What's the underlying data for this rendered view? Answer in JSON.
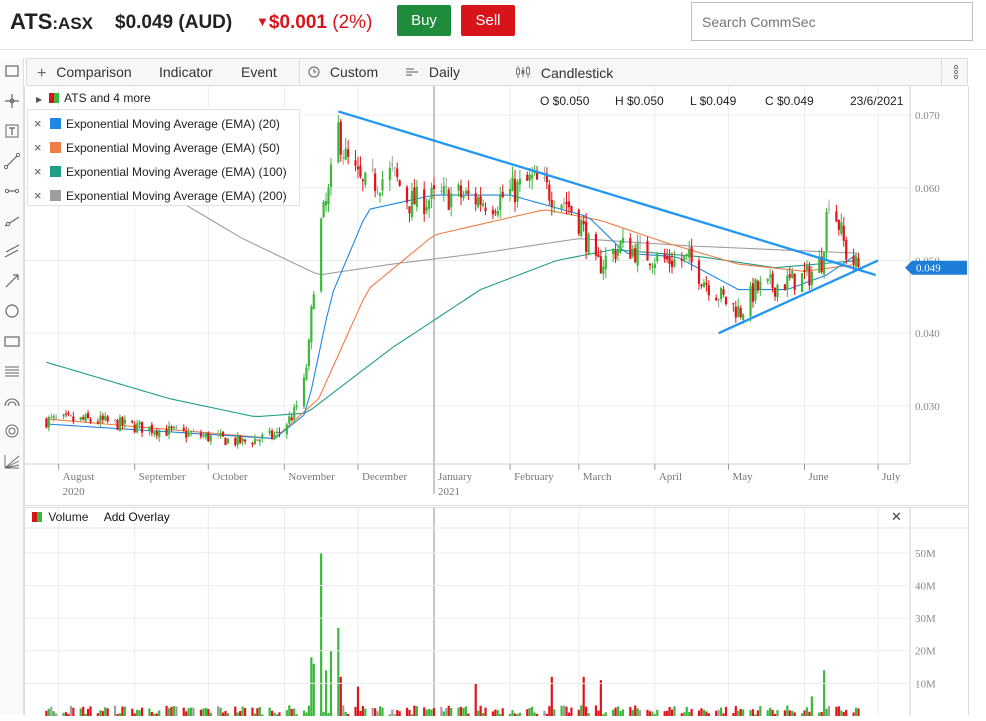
{
  "header": {
    "ticker": "ATS",
    "exchange": ":ASX",
    "price": "$0.049 (AUD)",
    "change_arrow": "▼",
    "change_amount": "$0.001",
    "change_pct": "(2%)",
    "buy_label": "Buy",
    "sell_label": "Sell",
    "search_placeholder": "Search CommSec",
    "colors": {
      "buy": "#1e8c3a",
      "sell": "#d7141a",
      "down": "#d7141a"
    }
  },
  "toolbar": {
    "items": [
      {
        "icon": "plus-icon",
        "label": "Comparison"
      },
      {
        "icon": "",
        "label": "Indicator"
      },
      {
        "icon": "",
        "label": "Event"
      },
      {
        "icon": "clock-icon",
        "label": "Custom"
      },
      {
        "icon": "bars-icon",
        "label": "Daily"
      },
      {
        "icon": "candlestick-icon",
        "label": "Candlestick"
      }
    ],
    "more_icon": "kebab-menu-icon"
  },
  "left_tools": [
    "panel-toggle-icon",
    "crosshair-icon",
    "text-tool-icon",
    "line-tool-icon",
    "horizontal-line-icon",
    "ray-tool-icon",
    "channel-tool-icon",
    "arrow-tool-icon",
    "circle-tool-icon",
    "rectangle-tool-icon",
    "fibonacci-icon",
    "arc-tool-icon",
    "spiral-tool-icon",
    "gann-fan-icon"
  ],
  "chart": {
    "series_label": "ATS and 4 more",
    "ohlc": {
      "open": "O $0.050",
      "high": "H $0.050",
      "low": "L $0.049",
      "close": "C $0.049",
      "date": "23/6/2021"
    },
    "legend": [
      {
        "label": "Exponential Moving Average (EMA) (20)",
        "color": "#1e88e5"
      },
      {
        "label": "Exponential Moving Average (EMA) (50)",
        "color": "#ef7d46"
      },
      {
        "label": "Exponential Moving Average (EMA) (100)",
        "color": "#1e9e84"
      },
      {
        "label": "Exponential Moving Average (EMA) (200)",
        "color": "#9e9e9e"
      }
    ],
    "price_tag": "0.049",
    "colors": {
      "up": "#3cb83c",
      "down": "#e0141a",
      "neutral": "#a0a0a0",
      "trendline": "#2196f3",
      "tag": "#1e7dd6"
    }
  },
  "volume": {
    "label": "Volume",
    "add_overlay": "Add Overlay",
    "close_icon": "close-icon"
  },
  "chart_data": {
    "type": "candlestick",
    "y_axis": {
      "ticks": [
        "0.070",
        "0.060",
        "0.050",
        "0.040",
        "0.030"
      ],
      "ylim": [
        0.022,
        0.074
      ]
    },
    "x_axis": {
      "month_labels": [
        "August",
        "September",
        "October",
        "November",
        "December",
        "January",
        "February",
        "March",
        "April",
        "May",
        "June",
        "July"
      ],
      "year_labels": [
        "2020",
        "2021"
      ]
    },
    "x_range": [
      "2020-07-24",
      "2021-07-14"
    ],
    "price_path": [
      [
        "2020-07-27",
        0.028
      ],
      [
        "2020-08-15",
        0.028
      ],
      [
        "2020-09-15",
        0.0265
      ],
      [
        "2020-10-15",
        0.025
      ],
      [
        "2020-10-29",
        0.026
      ],
      [
        "2020-11-05",
        0.029
      ],
      [
        "2020-11-09",
        0.033
      ],
      [
        "2020-11-11",
        0.038
      ],
      [
        "2020-11-13",
        0.047
      ],
      [
        "2020-11-16",
        0.055
      ],
      [
        "2020-11-19",
        0.059
      ],
      [
        "2020-11-23",
        0.068
      ],
      [
        "2020-11-26",
        0.064
      ],
      [
        "2020-12-03",
        0.06
      ],
      [
        "2020-12-15",
        0.062
      ],
      [
        "2020-12-22",
        0.058
      ],
      [
        "2021-01-10",
        0.059
      ],
      [
        "2021-01-25",
        0.058
      ],
      [
        "2021-02-10",
        0.061
      ],
      [
        "2021-02-24",
        0.058
      ],
      [
        "2021-03-02",
        0.055
      ],
      [
        "2021-03-08",
        0.049
      ],
      [
        "2021-03-18",
        0.052
      ],
      [
        "2021-04-05",
        0.05
      ],
      [
        "2021-04-15",
        0.05
      ],
      [
        "2021-04-22",
        0.047
      ],
      [
        "2021-05-01",
        0.044
      ],
      [
        "2021-05-06",
        0.043
      ],
      [
        "2021-05-12",
        0.046
      ],
      [
        "2021-05-25",
        0.047
      ],
      [
        "2021-06-03",
        0.048
      ],
      [
        "2021-06-08",
        0.05
      ],
      [
        "2021-06-11",
        0.059
      ],
      [
        "2021-06-15",
        0.055
      ],
      [
        "2021-06-18",
        0.051
      ],
      [
        "2021-06-23",
        0.049
      ]
    ],
    "ema_20": [
      [
        "2020-07-27",
        0.0275
      ],
      [
        "2020-10-28",
        0.0255
      ],
      [
        "2020-11-10",
        0.029
      ],
      [
        "2020-11-20",
        0.045
      ],
      [
        "2020-12-05",
        0.057
      ],
      [
        "2021-01-01",
        0.059
      ],
      [
        "2021-02-01",
        0.059
      ],
      [
        "2021-03-05",
        0.056
      ],
      [
        "2021-03-20",
        0.051
      ],
      [
        "2021-04-10",
        0.0505
      ],
      [
        "2021-05-05",
        0.046
      ],
      [
        "2021-05-25",
        0.046
      ],
      [
        "2021-06-10",
        0.048
      ],
      [
        "2021-06-23",
        0.051
      ]
    ],
    "ema_50": [
      [
        "2020-07-27",
        0.0282
      ],
      [
        "2020-10-28",
        0.0255
      ],
      [
        "2020-11-15",
        0.031
      ],
      [
        "2020-12-05",
        0.046
      ],
      [
        "2021-01-01",
        0.0535
      ],
      [
        "2021-02-15",
        0.057
      ],
      [
        "2021-03-10",
        0.0555
      ],
      [
        "2021-04-05",
        0.0525
      ],
      [
        "2021-05-05",
        0.0495
      ],
      [
        "2021-06-01",
        0.0485
      ],
      [
        "2021-06-23",
        0.0495
      ]
    ],
    "ema_100": [
      [
        "2020-07-27",
        0.036
      ],
      [
        "2020-09-15",
        0.031
      ],
      [
        "2020-10-20",
        0.0285
      ],
      [
        "2020-11-10",
        0.029
      ],
      [
        "2020-12-15",
        0.038
      ],
      [
        "2021-01-20",
        0.046
      ],
      [
        "2021-02-20",
        0.05
      ],
      [
        "2021-03-15",
        0.0515
      ],
      [
        "2021-04-20",
        0.0505
      ],
      [
        "2021-05-20",
        0.049
      ],
      [
        "2021-06-23",
        0.05
      ]
    ],
    "ema_200": [
      [
        "2020-08-15",
        0.063
      ],
      [
        "2020-09-15",
        0.059
      ],
      [
        "2020-10-15",
        0.053
      ],
      [
        "2020-11-15",
        0.048
      ],
      [
        "2020-12-15",
        0.0495
      ],
      [
        "2021-01-20",
        0.051
      ],
      [
        "2021-03-01",
        0.053
      ],
      [
        "2021-04-15",
        0.052
      ],
      [
        "2021-06-23",
        0.051
      ]
    ],
    "trendlines": [
      {
        "from": [
          "2020-11-23",
          0.0705
        ],
        "to": [
          "2021-06-30",
          0.048
        ]
      },
      {
        "from": [
          "2021-04-27",
          0.04
        ],
        "to": [
          "2021-07-01",
          0.05
        ]
      }
    ],
    "volume_axis": {
      "ticks": [
        "50M",
        "40M",
        "30M",
        "20M",
        "10M"
      ],
      "ylim": [
        0,
        57
      ]
    },
    "volume_spikes": [
      [
        "2020-11-12",
        18
      ],
      [
        "2020-11-13",
        16
      ],
      [
        "2020-11-16",
        50
      ],
      [
        "2020-11-18",
        14
      ],
      [
        "2020-11-20",
        20
      ],
      [
        "2020-11-23",
        27
      ],
      [
        "2020-11-24",
        12
      ],
      [
        "2020-12-01",
        9
      ],
      [
        "2021-01-18",
        10
      ],
      [
        "2021-02-18",
        12
      ],
      [
        "2021-03-03",
        12
      ],
      [
        "2021-03-10",
        11
      ],
      [
        "2021-06-09",
        14
      ],
      [
        "2021-06-04",
        6
      ]
    ]
  }
}
